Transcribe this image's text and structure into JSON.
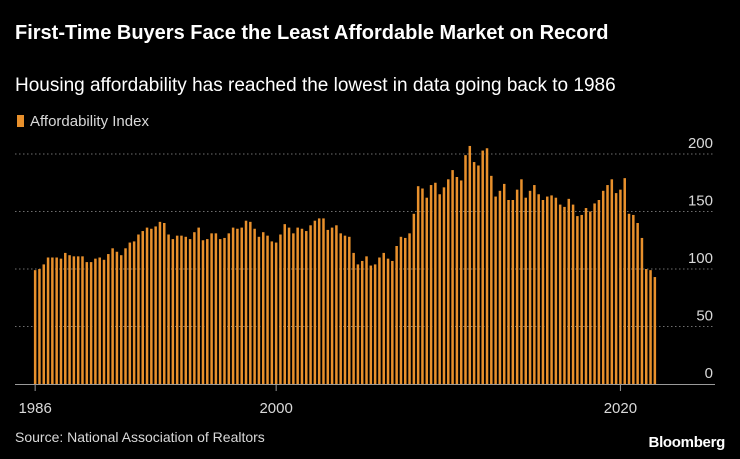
{
  "header": {
    "title": "First-Time Buyers Face the Least Affordable Market on Record",
    "subtitle": "Housing affordability has reached the lowest in data going back to 1986"
  },
  "legend": {
    "label": "Affordability Index",
    "color": "#e8902c"
  },
  "footer": {
    "source": "Source: National Association of Realtors",
    "logo": "Bloomberg"
  },
  "colors": {
    "background": "#000000",
    "bar": "#e8902c",
    "grid": "#6e6e6e",
    "axis_text": "#d9d9d9"
  },
  "chart_data": {
    "type": "bar",
    "title": "First-Time Buyers Face the Least Affordable Market on Record",
    "subtitle": "Housing affordability has reached the lowest in data going back to 1986",
    "xlabel": "",
    "ylabel": "",
    "x_start_year": 1986,
    "x_end_year": 2022.5,
    "x_ticks": [
      {
        "year": 1986,
        "label": "1986"
      },
      {
        "year": 2000,
        "label": "2000"
      },
      {
        "year": 2020,
        "label": "2020"
      }
    ],
    "ylim": [
      0,
      200
    ],
    "y_ticks": [
      {
        "value": 0,
        "label": "0"
      },
      {
        "value": 50,
        "label": "50"
      },
      {
        "value": 100,
        "label": "100"
      },
      {
        "value": 150,
        "label": "150"
      },
      {
        "value": 200,
        "label": "200"
      }
    ],
    "y_axis_position": "right",
    "grid": true,
    "series": [
      {
        "name": "Affordability Index",
        "frequency": "quarterly",
        "values": [
          99,
          100,
          104,
          110,
          110,
          110,
          109,
          114,
          112,
          111,
          111,
          111,
          106,
          106,
          109,
          110,
          108,
          113,
          118,
          115,
          112,
          118,
          123,
          124,
          130,
          133,
          136,
          135,
          137,
          141,
          140,
          130,
          126,
          129,
          129,
          128,
          126,
          132,
          136,
          125,
          126,
          131,
          131,
          126,
          127,
          131,
          136,
          135,
          136,
          142,
          141,
          135,
          128,
          132,
          129,
          124,
          123,
          130,
          139,
          136,
          131,
          136,
          135,
          133,
          138,
          142,
          144,
          144,
          134,
          136,
          138,
          131,
          129,
          128,
          114,
          104,
          107,
          111,
          103,
          104,
          110,
          114,
          109,
          107,
          120,
          128,
          127,
          131,
          148,
          172,
          170,
          162,
          173,
          175,
          165,
          171,
          178,
          186,
          180,
          177,
          199,
          207,
          193,
          190,
          203,
          205,
          181,
          163,
          168,
          174,
          160,
          160,
          169,
          178,
          162,
          168,
          173,
          165,
          160,
          163,
          164,
          162,
          156,
          154,
          161,
          156,
          146,
          147,
          153,
          150,
          157,
          160,
          168,
          173,
          178,
          166,
          169,
          179,
          148,
          147,
          140,
          127,
          100,
          99,
          93
        ]
      }
    ]
  }
}
